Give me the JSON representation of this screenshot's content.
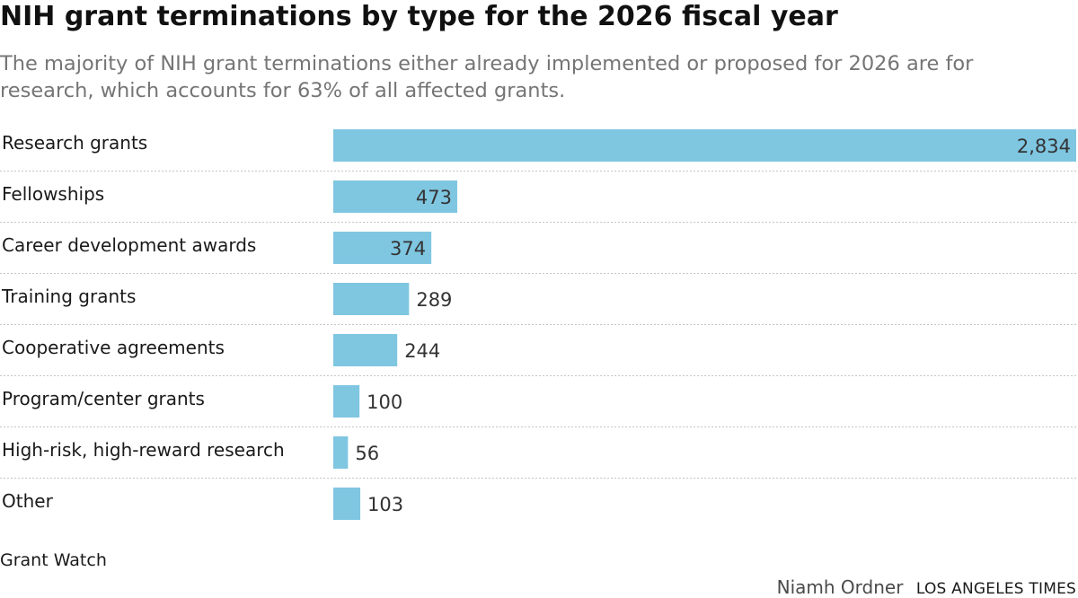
{
  "chart_data": {
    "type": "bar",
    "orientation": "horizontal",
    "title": "NIH grant terminations by type for the 2026 fiscal year",
    "subtitle": "The majority of NIH grant terminations either already implemented or proposed for 2026 are for research, which accounts for 63% of all affected grants.",
    "categories": [
      "Research grants",
      "Fellowships",
      "Career development awards",
      "Training grants",
      "Cooperative agreements",
      "Program/center grants",
      "High-risk, high-reward research",
      "Other"
    ],
    "values": [
      2834,
      473,
      374,
      289,
      244,
      100,
      56,
      103
    ],
    "value_labels": [
      "2,834",
      "473",
      "374",
      "289",
      "244",
      "100",
      "56",
      "103"
    ],
    "xlim": [
      0,
      2834
    ],
    "grid": false,
    "bar_color": "#7fc6e1",
    "divider_color": "#c4c4c4"
  },
  "footer": {
    "source": "Grant Watch",
    "author": "Niamh Ordner",
    "publisher": "LOS ANGELES TIMES"
  }
}
